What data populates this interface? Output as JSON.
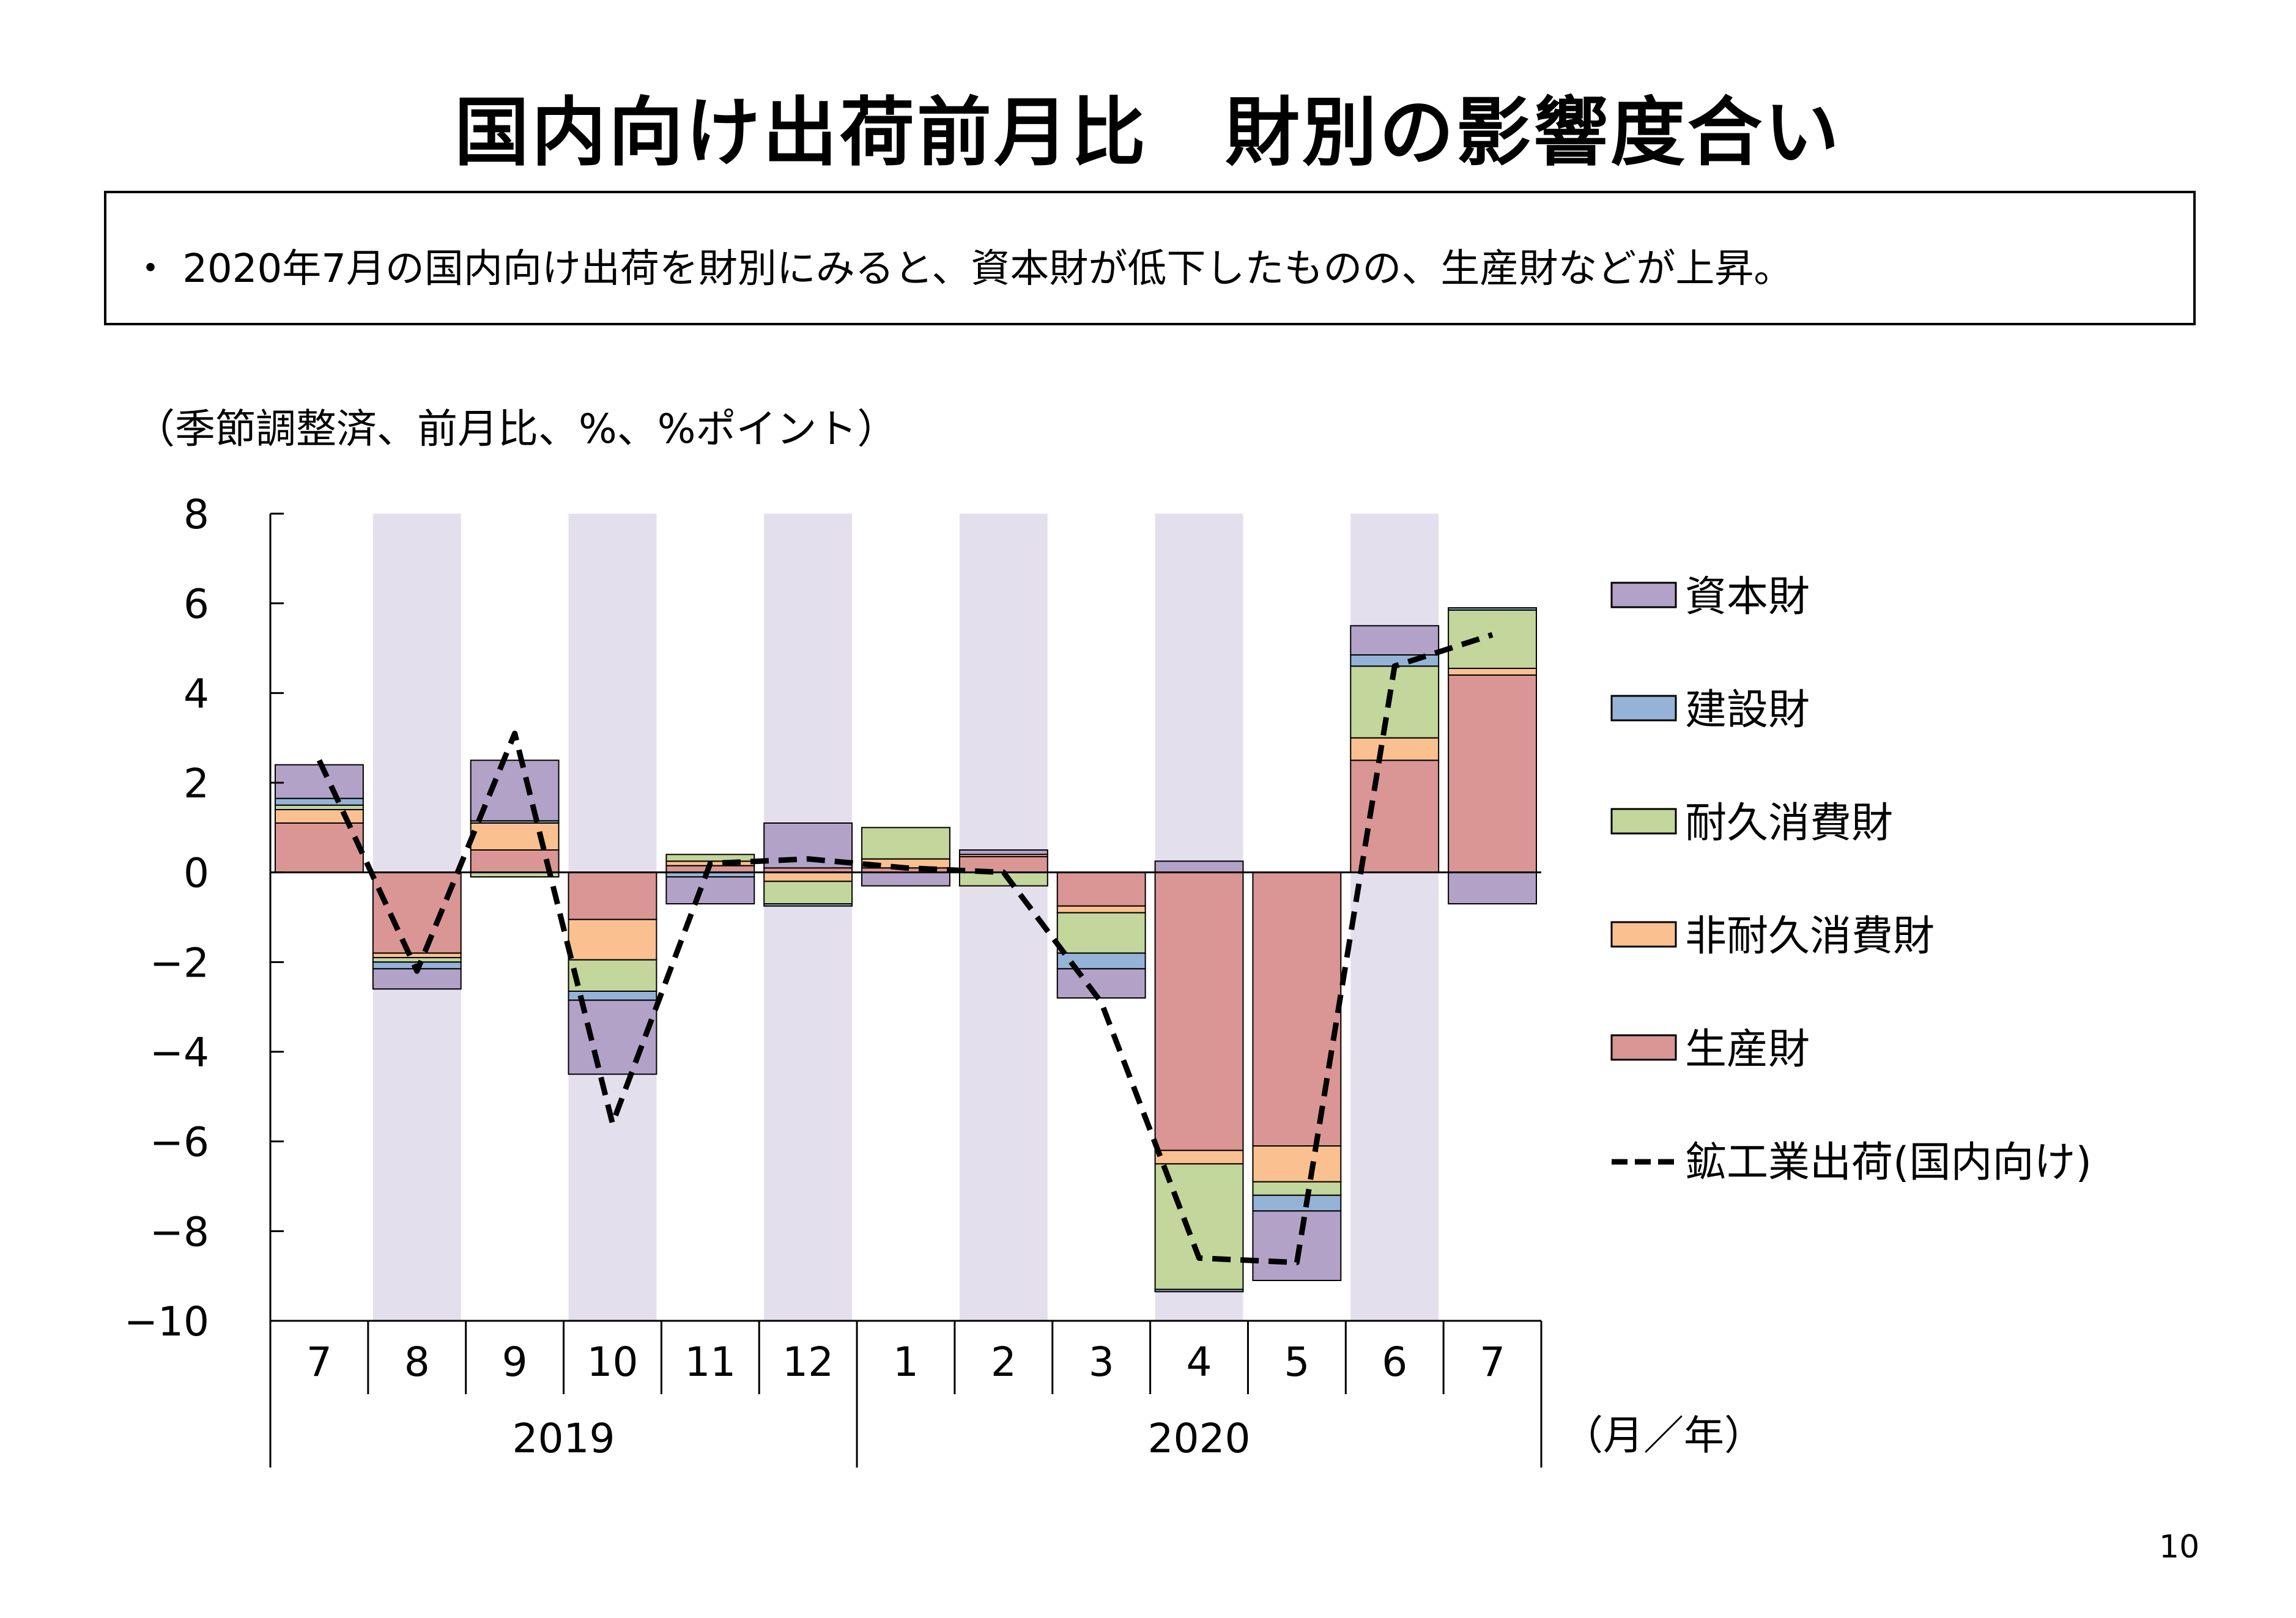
{
  "page": {
    "title": "国内向け出荷前月比　財別の影響度合い",
    "summary": "・ 2020年7月の国内向け出荷を財別にみると、資本財が低下したものの、生産財などが上昇。",
    "units_note": "（季節調整済、前月比、%、%ポイント）",
    "axis_unit_note": "（月／年）",
    "page_number": "10"
  },
  "chart_data": {
    "type": "bar",
    "stacked": true,
    "categories": [
      "7",
      "8",
      "9",
      "10",
      "11",
      "12",
      "1",
      "2",
      "3",
      "4",
      "5",
      "6",
      "7"
    ],
    "year_groups": [
      {
        "label": "2019",
        "start": 0,
        "end": 5
      },
      {
        "label": "2020",
        "start": 6,
        "end": 12
      }
    ],
    "ylim": [
      -10,
      8
    ],
    "yticks": [
      8,
      6,
      4,
      2,
      0,
      -2,
      -4,
      -6,
      -8,
      -10
    ],
    "yticks_labels": [
      "8",
      "6",
      "4",
      "2",
      "0",
      "−2",
      "−4",
      "−6",
      "−8",
      "−10"
    ],
    "shaded_categories": [
      1,
      3,
      5,
      7,
      9,
      11
    ],
    "shade_color": "#e4dfec",
    "series": [
      {
        "name": "生産財",
        "color": "#d99694",
        "values": [
          1.1,
          -1.8,
          0.5,
          -1.05,
          0.15,
          0.1,
          0.1,
          0.35,
          -0.75,
          -6.2,
          -6.1,
          2.5,
          4.4
        ]
      },
      {
        "name": "非耐久消費財",
        "color": "#fac090",
        "values": [
          0.3,
          -0.1,
          0.6,
          -0.9,
          0.1,
          -0.2,
          0.2,
          0.05,
          -0.15,
          -0.3,
          -0.8,
          0.5,
          0.15
        ]
      },
      {
        "name": "耐久消費財",
        "color": "#c3d69b",
        "values": [
          0.1,
          -0.1,
          -0.1,
          -0.7,
          0.15,
          -0.5,
          0.7,
          -0.3,
          -0.9,
          -2.8,
          -0.3,
          1.6,
          1.3
        ]
      },
      {
        "name": "建設財",
        "color": "#95b3d7",
        "values": [
          0.15,
          -0.15,
          0.05,
          -0.2,
          -0.1,
          -0.05,
          0.0,
          0.0,
          -0.35,
          -0.05,
          -0.35,
          0.25,
          0.05
        ]
      },
      {
        "name": "資本財",
        "color": "#b3a2c7",
        "values": [
          0.75,
          -0.45,
          1.35,
          -1.65,
          -0.6,
          1.0,
          -0.3,
          0.1,
          -0.65,
          0.25,
          -1.55,
          0.65,
          -0.7
        ]
      }
    ],
    "line": {
      "name": "鉱工業出荷(国内向け)",
      "style": "dashed",
      "color": "#000000",
      "values": [
        2.5,
        -2.2,
        3.1,
        -5.6,
        0.2,
        0.3,
        0.1,
        0.0,
        -2.9,
        -8.6,
        -8.7,
        4.6,
        5.3
      ]
    },
    "legend": [
      {
        "key": "資本財",
        "label": "資本財",
        "color": "#b3a2c7",
        "type": "box"
      },
      {
        "key": "建設財",
        "label": "建設財",
        "color": "#95b3d7",
        "type": "box"
      },
      {
        "key": "耐久消費財",
        "label": "耐久消費財",
        "color": "#c3d69b",
        "type": "box"
      },
      {
        "key": "非耐久消費財",
        "label": "非耐久消費財",
        "color": "#fac090",
        "type": "box"
      },
      {
        "key": "生産財",
        "label": "生産財",
        "color": "#d99694",
        "type": "box"
      },
      {
        "key": "line",
        "label": "鉱工業出荷(国内向け)",
        "color": "#000000",
        "type": "dashed-line"
      }
    ],
    "legend_position": "right",
    "grid": false
  }
}
